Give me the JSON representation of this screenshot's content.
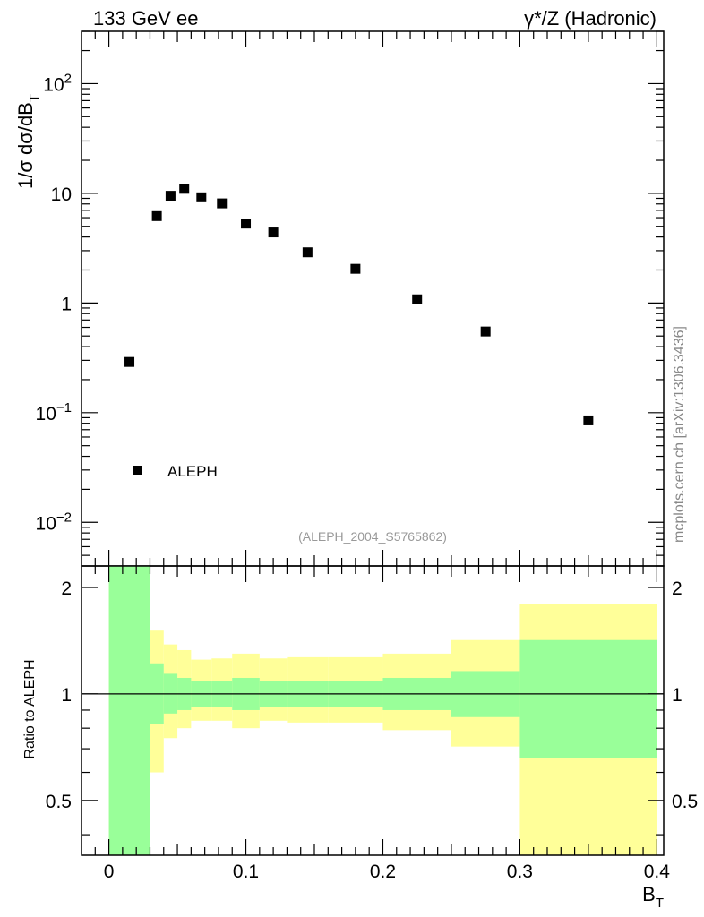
{
  "header": {
    "left": "133 GeV ee",
    "right": "γ*/Z (Hadronic)"
  },
  "watermark": "mcplots.cern.ch [arXiv:1306.3436]",
  "analysis_id": "(ALEPH_2004_S5765862)",
  "chart_data": [
    {
      "type": "scatter",
      "panel": "main",
      "ylabel": "1/σ  dσ/dB",
      "ylabel_sub": "T",
      "yscale": "log",
      "ylim": [
        0.004,
        300
      ],
      "xlim": [
        -0.02,
        0.405
      ],
      "y_tick_labels": [
        {
          "value": 100,
          "base": "10",
          "exp": "2"
        },
        {
          "value": 10,
          "base": "10",
          "exp": ""
        },
        {
          "value": 1,
          "base": "1",
          "exp": ""
        },
        {
          "value": 0.1,
          "base": "10",
          "exp": "−1"
        },
        {
          "value": 0.01,
          "base": "10",
          "exp": "−2"
        }
      ],
      "legend": {
        "label": "ALEPH",
        "position": "bottom-left"
      },
      "series": [
        {
          "name": "ALEPH",
          "color": "#000000",
          "marker": "square",
          "x": [
            0.015,
            0.035,
            0.045,
            0.055,
            0.0675,
            0.0825,
            0.1,
            0.12,
            0.145,
            0.18,
            0.225,
            0.275,
            0.35
          ],
          "y": [
            0.29,
            6.2,
            9.5,
            11.0,
            9.2,
            8.1,
            5.3,
            4.4,
            2.9,
            2.05,
            1.08,
            0.55,
            0.085
          ]
        }
      ]
    },
    {
      "type": "area",
      "panel": "ratio",
      "ylabel": "Ratio to ALEPH",
      "xlabel": "B",
      "xlabel_sub": "T",
      "xlim": [
        -0.02,
        0.405
      ],
      "ylim": [
        0.35,
        2.3
      ],
      "x_tick_labels": [
        "0",
        "0.1",
        "0.2",
        "0.3",
        "0.4"
      ],
      "y_tick_labels": [
        "0.5",
        "1",
        "2"
      ],
      "reference_line": 1,
      "bands": [
        {
          "kind": "outer",
          "color": "#ffff99",
          "bins": [
            {
              "x0": 0.0,
              "x1": 0.03,
              "lo": 0.35,
              "hi": 2.3
            },
            {
              "x0": 0.03,
              "x1": 0.04,
              "lo": 0.6,
              "hi": 1.51
            },
            {
              "x0": 0.04,
              "x1": 0.05,
              "lo": 0.75,
              "hi": 1.38
            },
            {
              "x0": 0.05,
              "x1": 0.06,
              "lo": 0.8,
              "hi": 1.33
            },
            {
              "x0": 0.06,
              "x1": 0.075,
              "lo": 0.84,
              "hi": 1.25
            },
            {
              "x0": 0.075,
              "x1": 0.09,
              "lo": 0.84,
              "hi": 1.26
            },
            {
              "x0": 0.09,
              "x1": 0.11,
              "lo": 0.8,
              "hi": 1.3
            },
            {
              "x0": 0.11,
              "x1": 0.13,
              "lo": 0.84,
              "hi": 1.26
            },
            {
              "x0": 0.13,
              "x1": 0.16,
              "lo": 0.83,
              "hi": 1.27
            },
            {
              "x0": 0.16,
              "x1": 0.2,
              "lo": 0.83,
              "hi": 1.27
            },
            {
              "x0": 0.2,
              "x1": 0.25,
              "lo": 0.79,
              "hi": 1.3
            },
            {
              "x0": 0.25,
              "x1": 0.3,
              "lo": 0.71,
              "hi": 1.42
            },
            {
              "x0": 0.3,
              "x1": 0.4,
              "lo": 0.35,
              "hi": 1.8
            }
          ]
        },
        {
          "kind": "inner",
          "color": "#99ff99",
          "bins": [
            {
              "x0": 0.0,
              "x1": 0.03,
              "lo": 0.35,
              "hi": 2.3
            },
            {
              "x0": 0.03,
              "x1": 0.04,
              "lo": 0.82,
              "hi": 1.22
            },
            {
              "x0": 0.04,
              "x1": 0.05,
              "lo": 0.88,
              "hi": 1.14
            },
            {
              "x0": 0.05,
              "x1": 0.06,
              "lo": 0.9,
              "hi": 1.11
            },
            {
              "x0": 0.06,
              "x1": 0.075,
              "lo": 0.92,
              "hi": 1.09
            },
            {
              "x0": 0.075,
              "x1": 0.09,
              "lo": 0.92,
              "hi": 1.09
            },
            {
              "x0": 0.09,
              "x1": 0.11,
              "lo": 0.9,
              "hi": 1.11
            },
            {
              "x0": 0.11,
              "x1": 0.13,
              "lo": 0.92,
              "hi": 1.09
            },
            {
              "x0": 0.13,
              "x1": 0.16,
              "lo": 0.92,
              "hi": 1.09
            },
            {
              "x0": 0.16,
              "x1": 0.2,
              "lo": 0.92,
              "hi": 1.09
            },
            {
              "x0": 0.2,
              "x1": 0.25,
              "lo": 0.9,
              "hi": 1.11
            },
            {
              "x0": 0.25,
              "x1": 0.3,
              "lo": 0.86,
              "hi": 1.16
            },
            {
              "x0": 0.3,
              "x1": 0.4,
              "lo": 0.66,
              "hi": 1.42
            }
          ]
        }
      ]
    }
  ]
}
